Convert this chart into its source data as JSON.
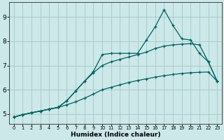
{
  "xlabel": "Humidex (Indice chaleur)",
  "background_color": "#cce8e8",
  "line_color": "#006060",
  "grid_color": "#aacccc",
  "xlim": [
    -0.5,
    23.5
  ],
  "ylim": [
    4.6,
    9.6
  ],
  "xticks": [
    0,
    1,
    2,
    3,
    4,
    5,
    6,
    7,
    8,
    9,
    10,
    11,
    12,
    13,
    14,
    15,
    16,
    17,
    18,
    19,
    20,
    21,
    22,
    23
  ],
  "yticks": [
    5,
    6,
    7,
    8,
    9
  ],
  "series1_x": [
    0,
    1,
    2,
    3,
    4,
    5,
    6,
    7,
    8,
    9,
    10,
    11,
    12,
    13,
    14,
    15,
    16,
    17,
    18,
    19,
    20,
    21,
    22,
    23
  ],
  "series1_y": [
    4.87,
    4.97,
    5.05,
    5.12,
    5.2,
    5.27,
    5.38,
    5.5,
    5.65,
    5.82,
    6.0,
    6.1,
    6.2,
    6.3,
    6.38,
    6.45,
    6.52,
    6.58,
    6.63,
    6.67,
    6.7,
    6.72,
    6.73,
    6.35
  ],
  "series2_x": [
    0,
    1,
    2,
    3,
    4,
    5,
    6,
    7,
    8,
    9,
    10,
    11,
    12,
    13,
    14,
    15,
    16,
    17,
    18,
    19,
    20,
    21,
    22,
    23
  ],
  "series2_y": [
    4.87,
    4.97,
    5.05,
    5.12,
    5.2,
    5.27,
    5.55,
    5.95,
    6.35,
    6.7,
    7.0,
    7.15,
    7.25,
    7.35,
    7.45,
    7.55,
    7.7,
    7.8,
    7.85,
    7.88,
    7.9,
    7.85,
    7.15,
    6.35
  ],
  "series3_x": [
    0,
    1,
    2,
    3,
    4,
    5,
    6,
    7,
    8,
    9,
    10,
    11,
    12,
    13,
    14,
    15,
    16,
    17,
    18,
    19,
    20,
    21,
    22,
    23
  ],
  "series3_y": [
    4.87,
    4.97,
    5.05,
    5.12,
    5.2,
    5.27,
    5.55,
    5.95,
    6.35,
    6.75,
    7.45,
    7.5,
    7.5,
    7.5,
    7.5,
    8.05,
    8.6,
    9.3,
    8.65,
    8.1,
    8.05,
    7.5,
    7.15,
    6.35
  ]
}
